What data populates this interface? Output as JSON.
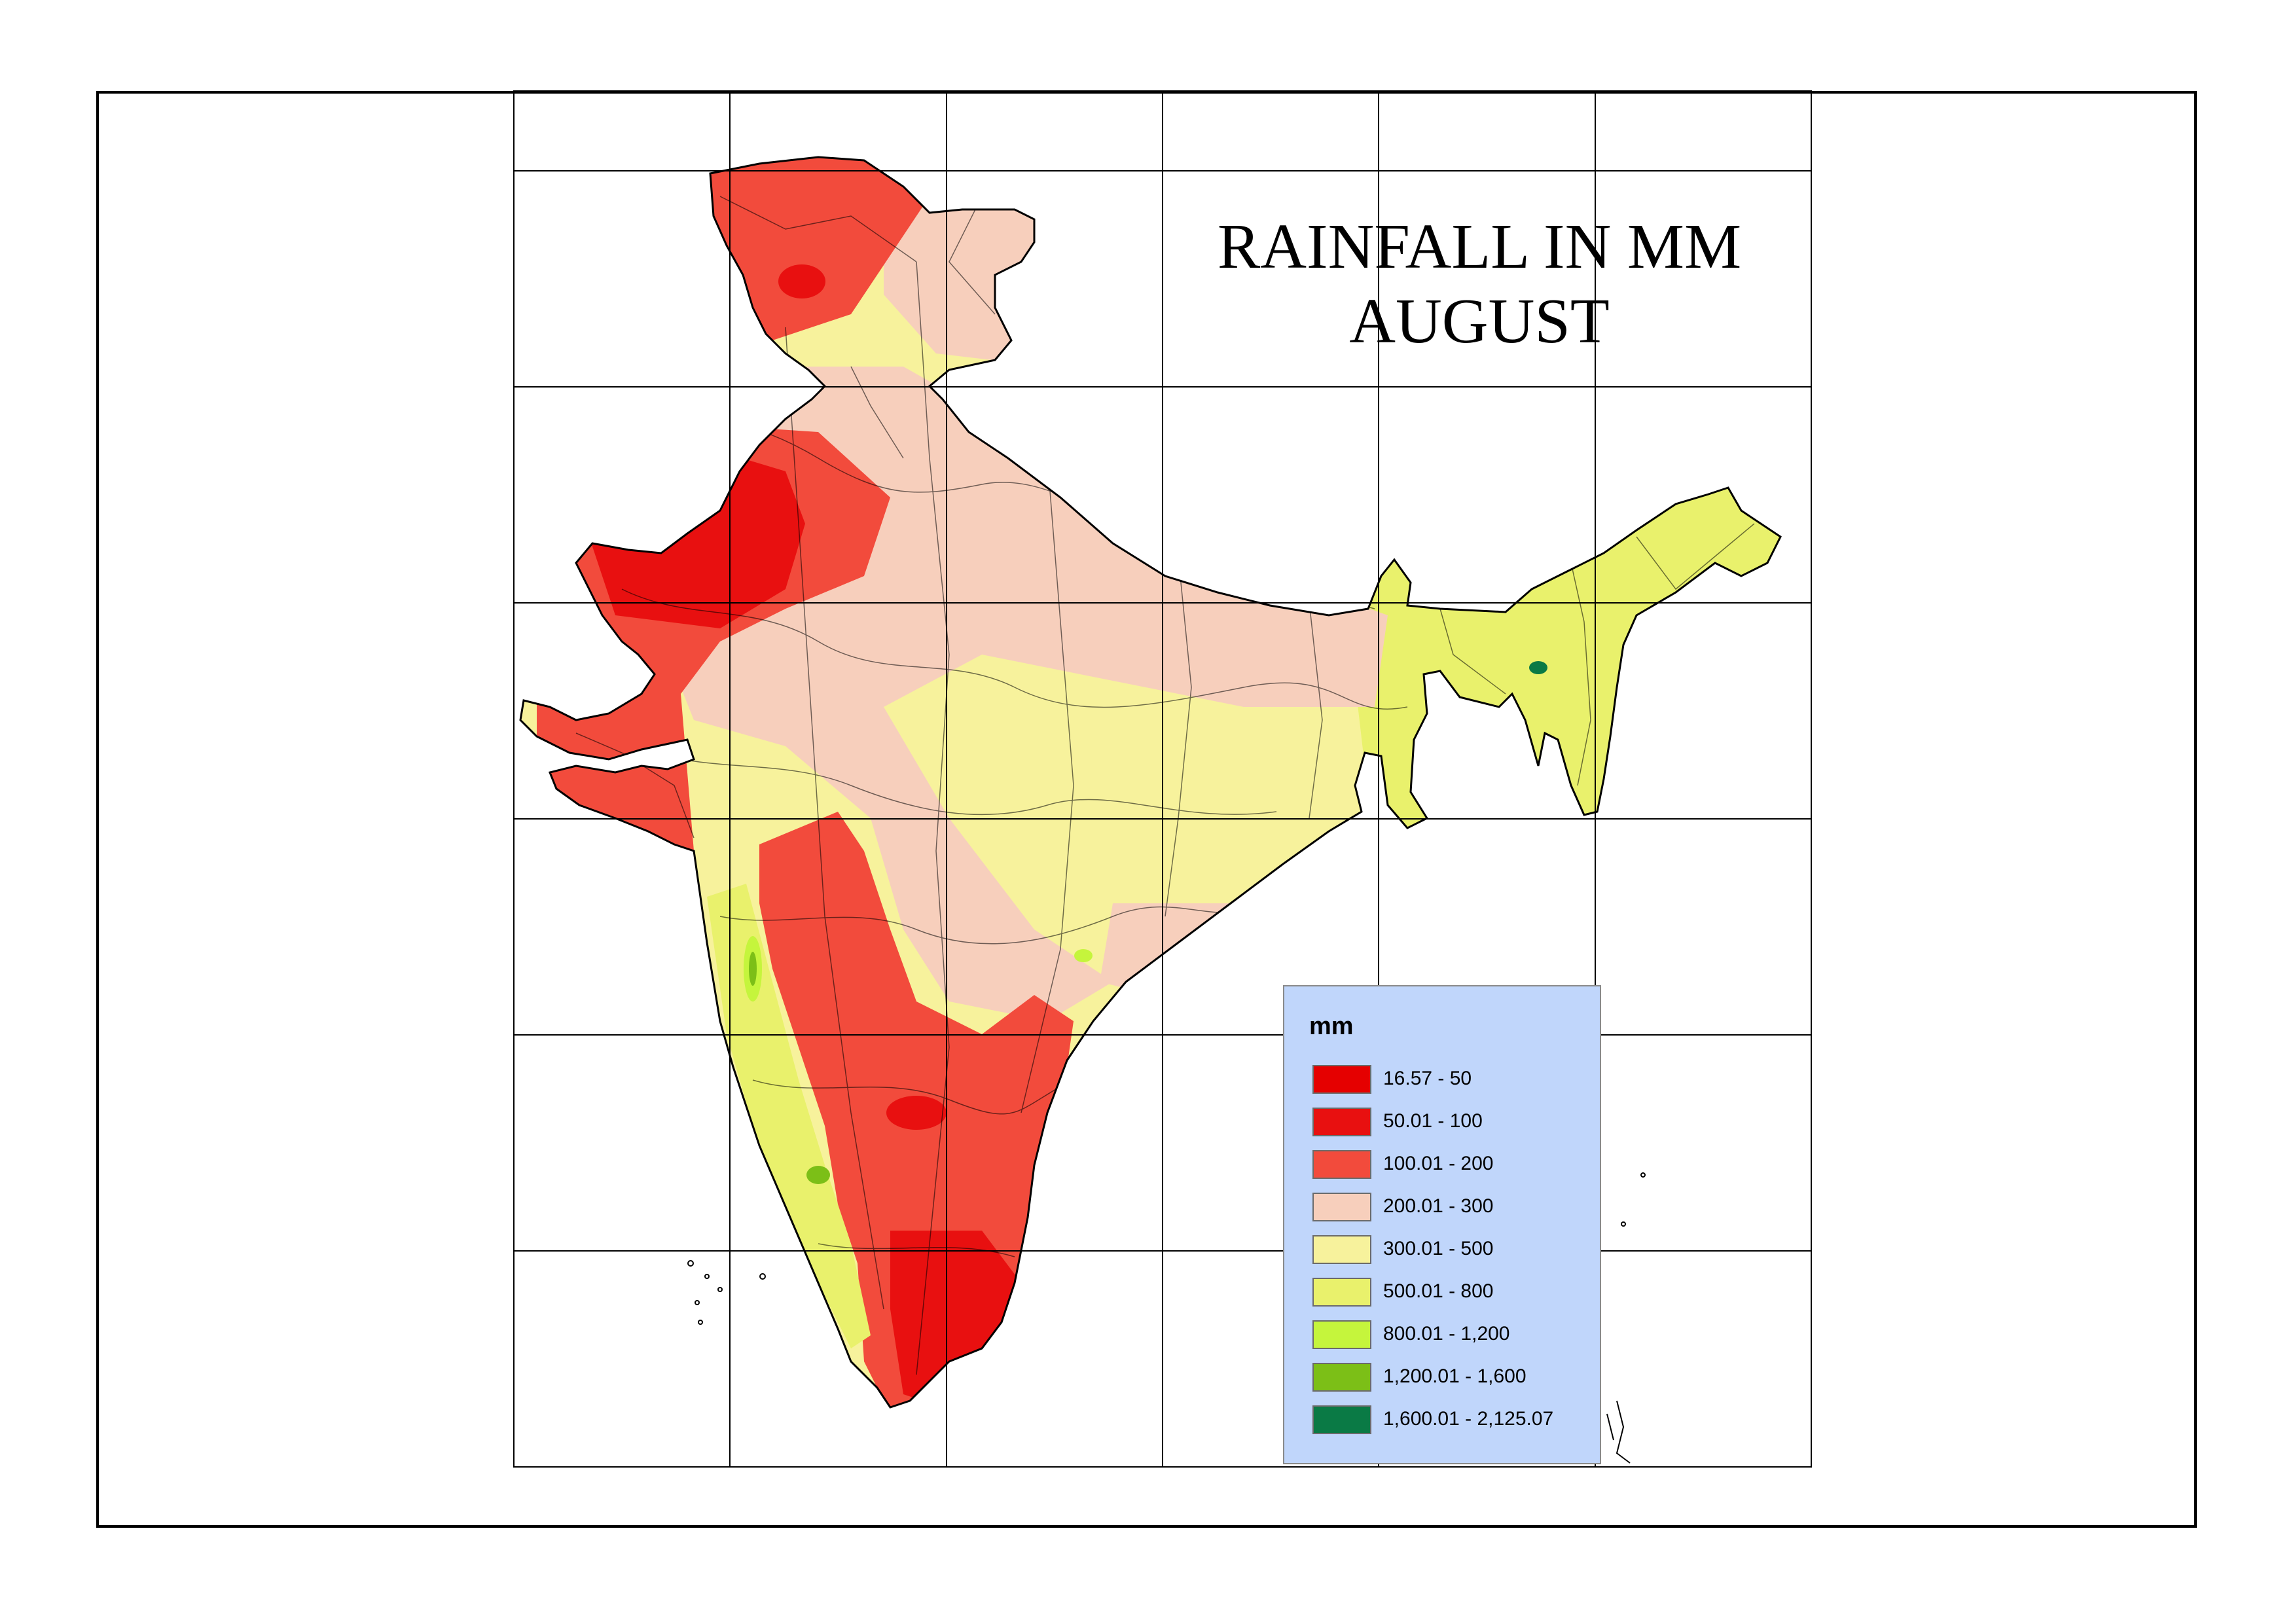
{
  "title": {
    "line1": "RAINFALL IN MM",
    "line2": "AUGUST"
  },
  "legend": {
    "title": "mm",
    "classes": [
      {
        "label": "16.57 - 50",
        "color": "#e50000"
      },
      {
        "label": "50.01 - 100",
        "color": "#e81010"
      },
      {
        "label": "100.01 - 200",
        "color": "#f24b3c"
      },
      {
        "label": "200.01 - 300",
        "color": "#f7cfbc"
      },
      {
        "label": "300.01 - 500",
        "color": "#f7f29c"
      },
      {
        "label": "500.01 - 800",
        "color": "#e9f16c"
      },
      {
        "label": "800.01 - 1,200",
        "color": "#c5f53c"
      },
      {
        "label": "1,200.01 - 1,600",
        "color": "#7cbf17"
      },
      {
        "label": "1,600.01 - 2,125.07",
        "color": "#0a7a45"
      }
    ]
  },
  "colors": {
    "background": "#ffffff",
    "legend_background": "#c0d6fb",
    "grid": "#000000",
    "district_boundaries": "#000000"
  }
}
